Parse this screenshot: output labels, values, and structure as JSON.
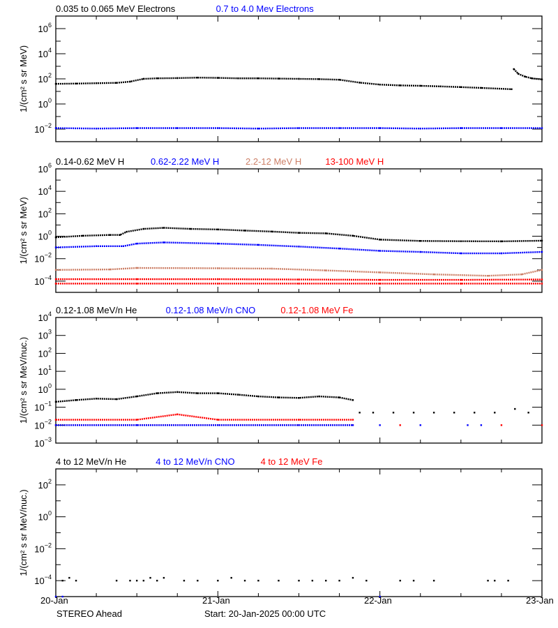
{
  "chart_data": [
    {
      "type": "scatter",
      "legend": [
        {
          "text": "0.035 to 0.065 MeV Electrons",
          "color": "#000000"
        },
        {
          "text": "0.7 to 4.0 Mev Electrons",
          "color": "#0000ff"
        }
      ],
      "ylabel": "1/(cm² s sr MeV)",
      "yscale": "log",
      "ylim": [
        0.001,
        10000000.0
      ],
      "ytick_exponents": [
        -2,
        0,
        2,
        4,
        6
      ],
      "series": [
        {
          "color": "#000000",
          "points": [
            [
              "2025-01-20T00:00",
              40
            ],
            [
              "2025-01-20T03:00",
              42
            ],
            [
              "2025-01-20T06:00",
              45
            ],
            [
              "2025-01-20T09:00",
              48
            ],
            [
              "2025-01-20T11:00",
              60
            ],
            [
              "2025-01-20T13:00",
              100
            ],
            [
              "2025-01-20T15:00",
              110
            ],
            [
              "2025-01-20T18:00",
              115
            ],
            [
              "2025-01-20T21:00",
              125
            ],
            [
              "2025-01-21T00:00",
              120
            ],
            [
              "2025-01-21T03:00",
              110
            ],
            [
              "2025-01-21T06:00",
              110
            ],
            [
              "2025-01-21T09:00",
              105
            ],
            [
              "2025-01-21T12:00",
              100
            ],
            [
              "2025-01-21T15:00",
              95
            ],
            [
              "2025-01-21T18:00",
              85
            ],
            [
              "2025-01-21T21:00",
              50
            ],
            [
              "2025-01-22T00:00",
              35
            ],
            [
              "2025-01-22T03:00",
              30
            ],
            [
              "2025-01-22T06:00",
              28
            ],
            [
              "2025-01-22T09:00",
              25
            ],
            [
              "2025-01-22T12:00",
              22
            ],
            [
              "2025-01-22T15:00",
              19
            ],
            [
              "2025-01-22T19:30",
              15
            ]
          ]
        },
        {
          "color": "#000000",
          "points": [
            [
              "2025-01-22T19:50",
              600
            ],
            [
              "2025-01-22T20:30",
              250
            ],
            [
              "2025-01-22T21:30",
              150
            ],
            [
              "2025-01-22T22:30",
              110
            ],
            [
              "2025-01-23T00:00",
              90
            ]
          ]
        },
        {
          "color": "#0000ff",
          "points": [
            [
              "2025-01-20T00:00",
              0.012
            ],
            [
              "2025-01-20T06:00",
              0.011
            ],
            [
              "2025-01-20T12:00",
              0.012
            ],
            [
              "2025-01-20T18:00",
              0.012
            ],
            [
              "2025-01-21T00:00",
              0.012
            ],
            [
              "2025-01-21T06:00",
              0.011
            ],
            [
              "2025-01-21T12:00",
              0.012
            ],
            [
              "2025-01-21T18:00",
              0.012
            ],
            [
              "2025-01-22T00:00",
              0.012
            ],
            [
              "2025-01-22T06:00",
              0.011
            ],
            [
              "2025-01-22T12:00",
              0.012
            ],
            [
              "2025-01-22T18:00",
              0.012
            ],
            [
              "2025-01-23T00:00",
              0.012
            ]
          ]
        }
      ]
    },
    {
      "type": "scatter",
      "legend": [
        {
          "text": "0.14-0.62 MeV H",
          "color": "#000000"
        },
        {
          "text": "0.62-2.22 MeV H",
          "color": "#0000ff"
        },
        {
          "text": "2.2-12 MeV H",
          "color": "#cc7f66"
        },
        {
          "text": "13-100 MeV H",
          "color": "#ff0000"
        }
      ],
      "ylabel": "1/(cm² s sr MeV)",
      "yscale": "log",
      "ylim": [
        1e-05,
        1000000.0
      ],
      "ytick_exponents": [
        -4,
        -2,
        0,
        2,
        4,
        6
      ],
      "series": [
        {
          "color": "#000000",
          "points": [
            [
              "2025-01-20T00:00",
              0.8
            ],
            [
              "2025-01-20T04:00",
              1.1
            ],
            [
              "2025-01-20T08:00",
              1.3
            ],
            [
              "2025-01-20T09:30",
              1.3
            ],
            [
              "2025-01-20T10:30",
              2.5
            ],
            [
              "2025-01-20T13:00",
              4.5
            ],
            [
              "2025-01-20T16:00",
              5.6
            ],
            [
              "2025-01-20T20:00",
              4.5
            ],
            [
              "2025-01-21T00:00",
              4
            ],
            [
              "2025-01-21T04:00",
              3.2
            ],
            [
              "2025-01-21T08:00",
              2.6
            ],
            [
              "2025-01-21T12:00",
              2
            ],
            [
              "2025-01-21T16:00",
              1.8
            ],
            [
              "2025-01-21T20:00",
              1.1
            ],
            [
              "2025-01-22T00:00",
              0.5
            ],
            [
              "2025-01-22T06:00",
              0.38
            ],
            [
              "2025-01-22T12:00",
              0.36
            ],
            [
              "2025-01-22T18:00",
              0.35
            ],
            [
              "2025-01-23T00:00",
              0.4
            ]
          ]
        },
        {
          "color": "#0000ff",
          "points": [
            [
              "2025-01-20T00:00",
              0.1
            ],
            [
              "2025-01-20T06:00",
              0.13
            ],
            [
              "2025-01-20T10:00",
              0.13
            ],
            [
              "2025-01-20T12:00",
              0.22
            ],
            [
              "2025-01-20T16:00",
              0.28
            ],
            [
              "2025-01-21T00:00",
              0.22
            ],
            [
              "2025-01-21T06:00",
              0.17
            ],
            [
              "2025-01-21T12:00",
              0.12
            ],
            [
              "2025-01-21T18:00",
              0.08
            ],
            [
              "2025-01-22T00:00",
              0.05
            ],
            [
              "2025-01-22T06:00",
              0.04
            ],
            [
              "2025-01-22T12:00",
              0.03
            ],
            [
              "2025-01-22T18:00",
              0.03
            ],
            [
              "2025-01-23T00:00",
              0.04
            ]
          ]
        },
        {
          "color": "#cc7f66",
          "points": [
            [
              "2025-01-20T00:00",
              0.001
            ],
            [
              "2025-01-20T08:00",
              0.0011
            ],
            [
              "2025-01-20T12:00",
              0.0015
            ],
            [
              "2025-01-21T00:00",
              0.0014
            ],
            [
              "2025-01-21T08:00",
              0.0013
            ],
            [
              "2025-01-21T16:00",
              0.0009
            ],
            [
              "2025-01-22T00:00",
              0.0006
            ],
            [
              "2025-01-22T08:00",
              0.0004
            ],
            [
              "2025-01-22T16:00",
              0.0003
            ],
            [
              "2025-01-22T21:00",
              0.0004
            ],
            [
              "2025-01-23T00:00",
              0.001
            ]
          ]
        },
        {
          "color": "#ff0000",
          "points": [
            [
              "2025-01-20T00:00",
              0.00015
            ],
            [
              "2025-01-20T12:00",
              0.00015
            ],
            [
              "2025-01-21T00:00",
              0.00015
            ],
            [
              "2025-01-21T12:00",
              0.00014
            ],
            [
              "2025-01-22T00:00",
              0.00013
            ],
            [
              "2025-01-22T12:00",
              0.00013
            ],
            [
              "2025-01-23T00:00",
              0.00014
            ]
          ]
        },
        {
          "color": "#ff0000",
          "points": [
            [
              "2025-01-20T00:00",
              6e-05
            ],
            [
              "2025-01-20T12:00",
              6e-05
            ],
            [
              "2025-01-21T00:00",
              6e-05
            ],
            [
              "2025-01-21T12:00",
              6e-05
            ],
            [
              "2025-01-22T00:00",
              6e-05
            ],
            [
              "2025-01-22T12:00",
              6e-05
            ],
            [
              "2025-01-23T00:00",
              6e-05
            ]
          ]
        }
      ]
    },
    {
      "type": "scatter",
      "legend": [
        {
          "text": "0.12-1.08 MeV/n He",
          "color": "#000000"
        },
        {
          "text": "0.12-1.08 MeV/n CNO",
          "color": "#0000ff"
        },
        {
          "text": "0.12-1.08 MeV Fe",
          "color": "#ff0000"
        }
      ],
      "ylabel": "1/(cm² s sr MeV/nuc.)",
      "yscale": "log",
      "ylim": [
        0.001,
        10000.0
      ],
      "ytick_exponents": [
        -3,
        -2,
        -1,
        0,
        1,
        2,
        3,
        4
      ],
      "series": [
        {
          "color": "#000000",
          "points": [
            [
              "2025-01-20T00:00",
              0.2
            ],
            [
              "2025-01-20T03:00",
              0.25
            ],
            [
              "2025-01-20T06:00",
              0.3
            ],
            [
              "2025-01-20T09:00",
              0.28
            ],
            [
              "2025-01-20T12:00",
              0.4
            ],
            [
              "2025-01-20T15:00",
              0.6
            ],
            [
              "2025-01-20T18:00",
              0.7
            ],
            [
              "2025-01-20T21:00",
              0.6
            ],
            [
              "2025-01-21T00:00",
              0.6
            ],
            [
              "2025-01-21T03:00",
              0.5
            ],
            [
              "2025-01-21T06:00",
              0.4
            ],
            [
              "2025-01-21T09:00",
              0.35
            ],
            [
              "2025-01-21T12:00",
              0.33
            ],
            [
              "2025-01-21T15:00",
              0.4
            ],
            [
              "2025-01-21T18:00",
              0.35
            ],
            [
              "2025-01-21T20:00",
              0.25
            ]
          ]
        },
        {
          "color": "#000000",
          "line": false,
          "points": [
            [
              "2025-01-21T21:00",
              0.05
            ],
            [
              "2025-01-21T23:00",
              0.05
            ],
            [
              "2025-01-22T02:00",
              0.05
            ],
            [
              "2025-01-22T05:00",
              0.05
            ],
            [
              "2025-01-22T08:00",
              0.05
            ],
            [
              "2025-01-22T11:00",
              0.05
            ],
            [
              "2025-01-22T14:00",
              0.05
            ],
            [
              "2025-01-22T17:00",
              0.05
            ],
            [
              "2025-01-22T20:00",
              0.08
            ],
            [
              "2025-01-22T22:00",
              0.05
            ]
          ]
        },
        {
          "color": "#ff0000",
          "points": [
            [
              "2025-01-20T00:00",
              0.01
            ],
            [
              "2025-01-20T12:00",
              0.01
            ],
            [
              "2025-01-21T00:00",
              0.01
            ],
            [
              "2025-01-21T12:00",
              0.01
            ],
            [
              "2025-01-21T20:00",
              0.01
            ]
          ]
        },
        {
          "color": "#ff0000",
          "points": [
            [
              "2025-01-20T00:00",
              0.02
            ],
            [
              "2025-01-20T12:00",
              0.02
            ],
            [
              "2025-01-20T18:00",
              0.04
            ],
            [
              "2025-01-21T00:00",
              0.02
            ],
            [
              "2025-01-21T12:00",
              0.02
            ],
            [
              "2025-01-21T20:00",
              0.02
            ]
          ]
        },
        {
          "color": "#0000ff",
          "points": [
            [
              "2025-01-20T00:00",
              0.01
            ],
            [
              "2025-01-20T12:00",
              0.01
            ],
            [
              "2025-01-21T00:00",
              0.01
            ],
            [
              "2025-01-21T12:00",
              0.01
            ],
            [
              "2025-01-21T20:00",
              0.01
            ]
          ]
        },
        {
          "color": "#0000ff",
          "line": false,
          "points": [
            [
              "2025-01-22T00:00",
              0.01
            ],
            [
              "2025-01-22T06:00",
              0.01
            ],
            [
              "2025-01-22T13:00",
              0.01
            ],
            [
              "2025-01-22T15:00",
              0.01
            ]
          ]
        },
        {
          "color": "#ff0000",
          "line": false,
          "points": [
            [
              "2025-01-22T03:00",
              0.01
            ],
            [
              "2025-01-22T18:00",
              0.01
            ],
            [
              "2025-01-23T00:00",
              0.01
            ]
          ]
        }
      ]
    },
    {
      "type": "scatter",
      "legend": [
        {
          "text": "4 to 12 MeV/n He",
          "color": "#000000"
        },
        {
          "text": "4 to 12 MeV/n CNO",
          "color": "#0000ff"
        },
        {
          "text": "4 to 12 MeV Fe",
          "color": "#ff0000"
        }
      ],
      "ylabel": "1/(cm² s sr MeV/nuc.)",
      "yscale": "log",
      "ylim": [
        1e-05,
        1000.0
      ],
      "ytick_exponents": [
        -4,
        -2,
        0,
        2
      ],
      "series": [
        {
          "color": "#000000",
          "line": false,
          "points": [
            [
              "2025-01-20T01:00",
              0.0001
            ],
            [
              "2025-01-20T02:00",
              0.00015
            ],
            [
              "2025-01-20T03:00",
              0.0001
            ],
            [
              "2025-01-20T09:00",
              0.0001
            ],
            [
              "2025-01-20T11:00",
              0.0001
            ],
            [
              "2025-01-20T12:00",
              0.0001
            ],
            [
              "2025-01-20T13:00",
              0.0001
            ],
            [
              "2025-01-20T14:00",
              0.00015
            ],
            [
              "2025-01-20T15:00",
              0.0001
            ],
            [
              "2025-01-20T16:00",
              0.00015
            ],
            [
              "2025-01-20T19:00",
              0.0001
            ],
            [
              "2025-01-20T21:00",
              0.0001
            ],
            [
              "2025-01-21T00:00",
              0.0001
            ],
            [
              "2025-01-21T02:00",
              0.00015
            ],
            [
              "2025-01-21T04:00",
              0.0001
            ],
            [
              "2025-01-21T06:00",
              0.0001
            ],
            [
              "2025-01-21T09:00",
              0.0001
            ],
            [
              "2025-01-21T12:00",
              0.0001
            ],
            [
              "2025-01-21T14:00",
              0.0001
            ],
            [
              "2025-01-21T16:00",
              0.0001
            ],
            [
              "2025-01-21T18:00",
              0.0001
            ],
            [
              "2025-01-21T20:00",
              0.00015
            ],
            [
              "2025-01-21T22:00",
              0.0001
            ],
            [
              "2025-01-22T03:00",
              0.0001
            ],
            [
              "2025-01-22T05:00",
              0.0001
            ],
            [
              "2025-01-22T08:00",
              0.0001
            ],
            [
              "2025-01-22T16:00",
              0.0001
            ],
            [
              "2025-01-22T17:00",
              0.0001
            ],
            [
              "2025-01-22T19:00",
              0.0001
            ]
          ]
        },
        {
          "color": "#0000ff",
          "line": false,
          "points": [
            [
              "2025-01-20T00:00",
              1e-05
            ],
            [
              "2025-01-20T01:00",
              1e-05
            ],
            [
              "2025-01-22T00:00",
              1e-05
            ]
          ]
        }
      ]
    }
  ],
  "xaxis": {
    "range": [
      "2025-01-20T00:00",
      "2025-01-23T00:00"
    ],
    "tick_labels": [
      "20-Jan",
      "21-Jan",
      "22-Jan",
      "23-Jan"
    ],
    "minor_tick_hours": 6
  },
  "footer": {
    "spacecraft": "STEREO Ahead",
    "start": "Start: 20-Jan-2025 00:00 UTC"
  }
}
